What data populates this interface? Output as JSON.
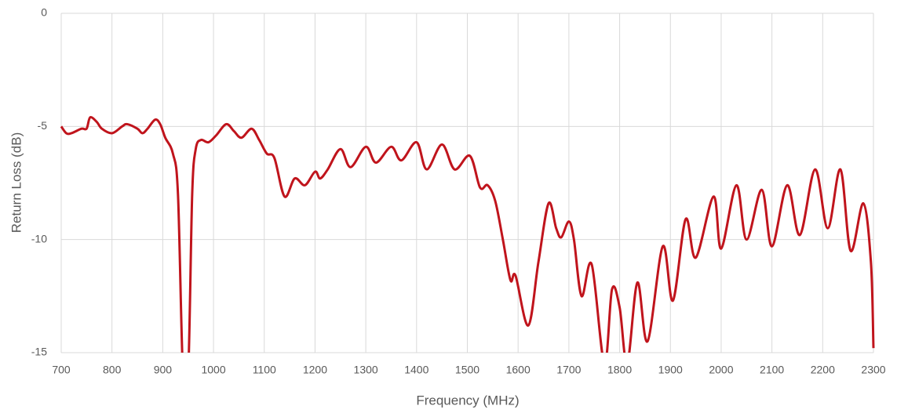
{
  "chart_data": {
    "type": "line",
    "x_label": "Frequency (MHz)",
    "y_label": "Return Loss (dB)",
    "xlim": [
      700,
      2300
    ],
    "xticks": [
      700,
      800,
      900,
      1000,
      1100,
      1200,
      1300,
      1400,
      1500,
      1600,
      1700,
      1800,
      1900,
      2000,
      2100,
      2200,
      2300
    ],
    "ylim": [
      -15,
      0
    ],
    "yticks": [
      0,
      -5,
      -10,
      -15
    ],
    "grid": true,
    "x": [
      700,
      710,
      720,
      740,
      750,
      757,
      770,
      780,
      800,
      820,
      830,
      850,
      860,
      870,
      885,
      895,
      905,
      920,
      930,
      940,
      950,
      958,
      965,
      975,
      990,
      1005,
      1025,
      1040,
      1055,
      1075,
      1090,
      1105,
      1120,
      1140,
      1160,
      1180,
      1200,
      1210,
      1225,
      1250,
      1270,
      1300,
      1320,
      1350,
      1370,
      1400,
      1420,
      1450,
      1475,
      1505,
      1525,
      1540,
      1555,
      1570,
      1585,
      1595,
      1620,
      1640,
      1660,
      1675,
      1685,
      1700,
      1710,
      1725,
      1745,
      1770,
      1785,
      1800,
      1815,
      1835,
      1855,
      1885,
      1905,
      1930,
      1950,
      1985,
      2000,
      2030,
      2050,
      2080,
      2100,
      2130,
      2155,
      2185,
      2210,
      2235,
      2255,
      2280,
      2295,
      2300
    ],
    "series": [
      {
        "name": "Return Loss",
        "color": "#c0141c",
        "values": [
          -5.0,
          -5.3,
          -5.3,
          -5.1,
          -5.1,
          -4.6,
          -4.8,
          -5.1,
          -5.3,
          -5.0,
          -4.9,
          -5.1,
          -5.3,
          -5.1,
          -4.7,
          -4.9,
          -5.5,
          -6.2,
          -8,
          -16,
          -16,
          -8,
          -6.0,
          -5.6,
          -5.7,
          -5.4,
          -4.9,
          -5.2,
          -5.5,
          -5.1,
          -5.6,
          -6.2,
          -6.4,
          -8.1,
          -7.3,
          -7.6,
          -7.0,
          -7.3,
          -6.9,
          -6.0,
          -6.8,
          -5.9,
          -6.6,
          -5.9,
          -6.5,
          -5.7,
          -6.9,
          -5.8,
          -6.9,
          -6.3,
          -7.7,
          -7.6,
          -8.3,
          -10,
          -11.8,
          -11.6,
          -13.8,
          -11,
          -8.4,
          -9.5,
          -9.9,
          -9.2,
          -10,
          -12.5,
          -11.1,
          -15.5,
          -12.2,
          -13,
          -15.5,
          -11.9,
          -14.5,
          -10.3,
          -12.7,
          -9.1,
          -10.8,
          -8.1,
          -10.4,
          -7.6,
          -10.0,
          -7.8,
          -10.3,
          -7.6,
          -9.8,
          -6.9,
          -9.5,
          -6.9,
          -10.5,
          -8.4,
          -11,
          -14.8
        ]
      }
    ]
  }
}
